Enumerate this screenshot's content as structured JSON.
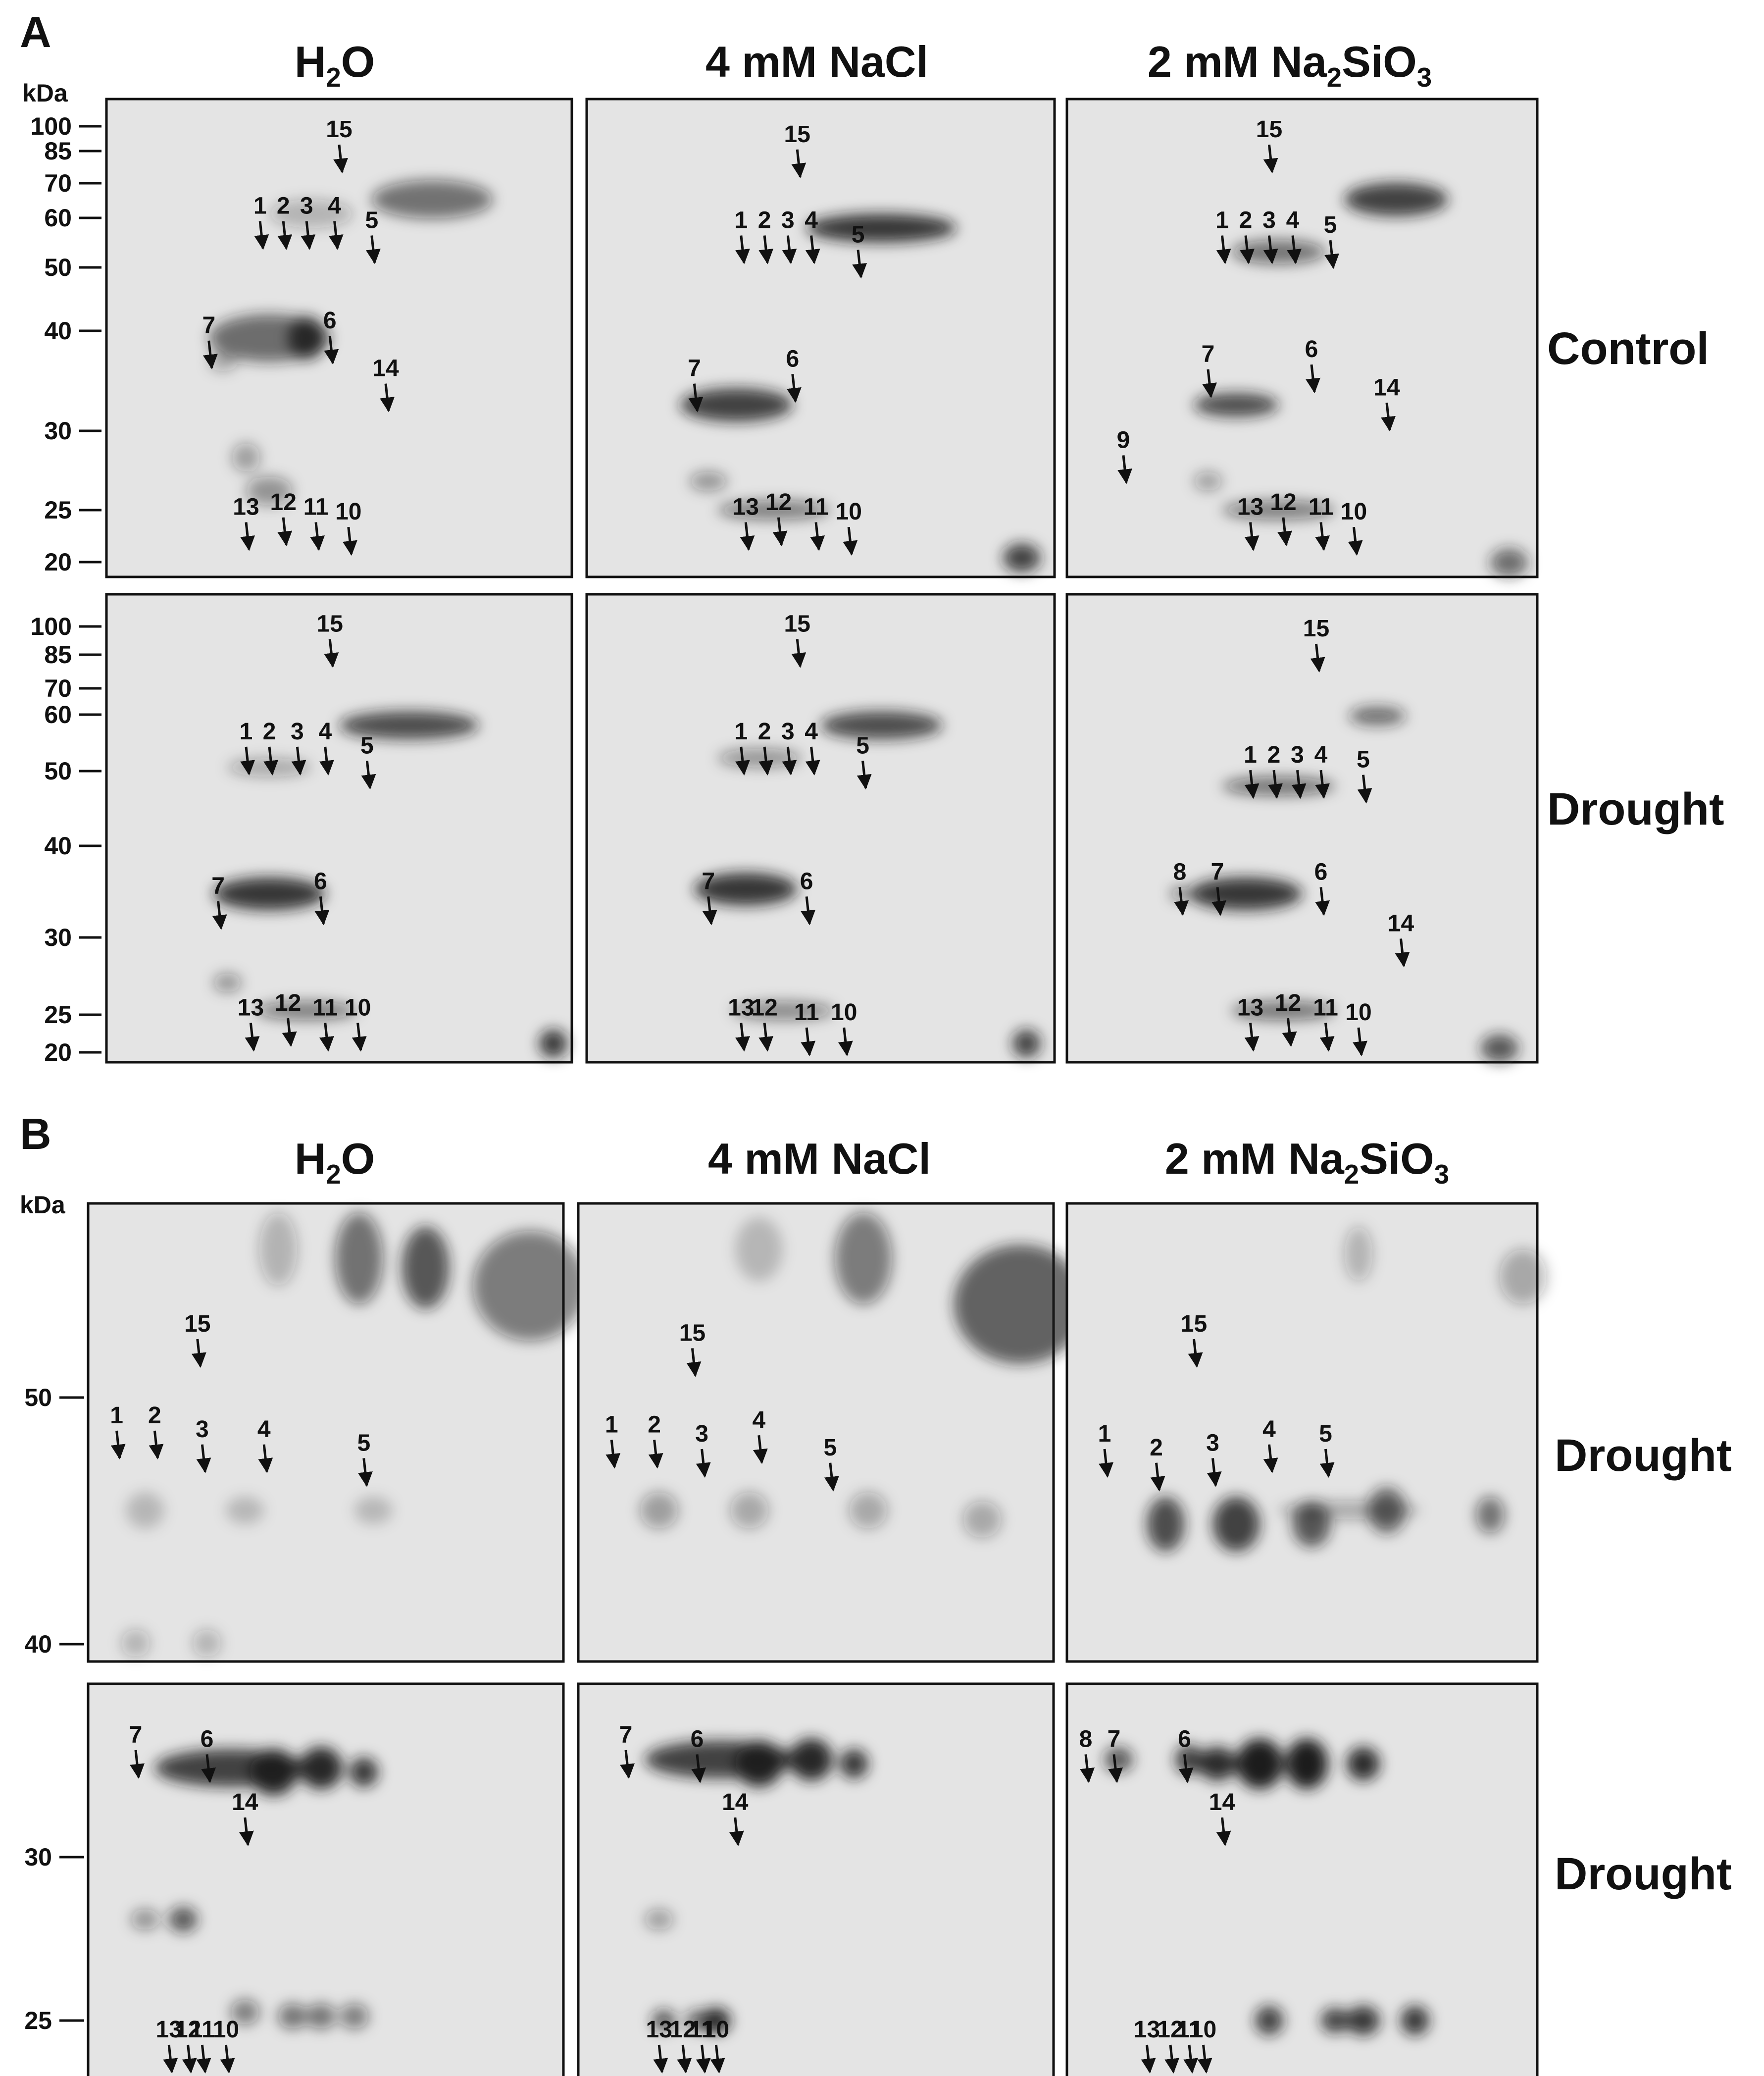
{
  "panels": {
    "A": {
      "letter": "A",
      "kda_label": "kDa",
      "columns": [
        "H2O",
        "4 mM NaCl",
        "2 mM Na2SiO3"
      ],
      "row_labels": [
        "Control",
        "Drought"
      ],
      "mw_ticks": [
        "100",
        "85",
        "70",
        "60",
        "50",
        "40",
        "30",
        "25",
        "20"
      ],
      "spot_labels": [
        [
          "15",
          "1",
          "2",
          "3",
          "4",
          "5",
          "7",
          "6",
          "14",
          "13",
          "12",
          "11",
          "10"
        ],
        [
          "15",
          "1",
          "2",
          "3",
          "4",
          "5",
          "7",
          "6",
          "13",
          "12",
          "11",
          "10"
        ],
        [
          "15",
          "1",
          "2",
          "3",
          "4",
          "5",
          "7",
          "6",
          "14",
          "9",
          "13",
          "12",
          "11",
          "10"
        ],
        [
          "15",
          "1",
          "2",
          "3",
          "4",
          "5",
          "7",
          "6",
          "13",
          "12",
          "11",
          "10"
        ],
        [
          "15",
          "1",
          "2",
          "3",
          "4",
          "5",
          "7",
          "6",
          "13",
          "12",
          "11",
          "10"
        ],
        [
          "15",
          "1",
          "2",
          "3",
          "4",
          "5",
          "8",
          "7",
          "6",
          "14",
          "13",
          "12",
          "11",
          "10"
        ]
      ]
    },
    "B": {
      "letter": "B",
      "kda_label": "kDa",
      "columns": [
        "H2O",
        "4 mM NaCl",
        "2 mM Na2SiO3"
      ],
      "row_labels": [
        "Drought",
        "Drought"
      ],
      "top_ticks": [
        "50",
        "40"
      ],
      "bottom_ticks": [
        "30",
        "25"
      ],
      "spot_labels": [
        [
          "15",
          "1",
          "2",
          "3",
          "4",
          "5"
        ],
        [
          "15",
          "1",
          "2",
          "3",
          "4",
          "5"
        ],
        [
          "15",
          "1",
          "2",
          "3",
          "4",
          "5"
        ],
        [
          "7",
          "6",
          "14",
          "13",
          "12",
          "11",
          "10"
        ],
        [
          "7",
          "6",
          "14",
          "13",
          "12",
          "11",
          "10"
        ],
        [
          "8",
          "7",
          "6",
          "14",
          "13",
          "12",
          "11",
          "10"
        ]
      ]
    }
  },
  "title_parts": {
    "h2o": [
      "H",
      "2",
      "O"
    ],
    "nacl": "4 mM NaCl",
    "silicate": [
      "2 mM Na",
      "2",
      "SiO",
      "3"
    ]
  }
}
